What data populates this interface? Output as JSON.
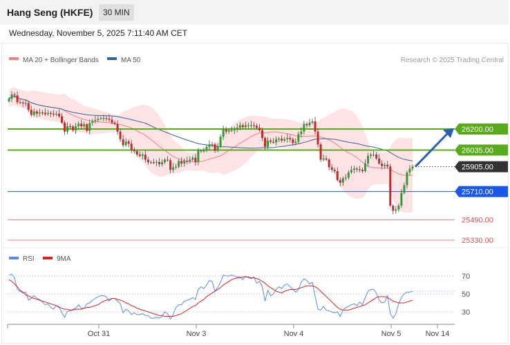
{
  "header": {
    "title": "Hang Seng (HKFE)",
    "timeframe": "30 MIN",
    "timestamp": "Wednesday, November 5, 2025 7:11:40 AM CET"
  },
  "legend": {
    "ma20": "MA 20 + Bollinger Bands",
    "ma50": "MA 50",
    "ma20_color": "#f08080",
    "ma50_color": "#3a5f9a",
    "credit": "Research © 2025 Trading Central"
  },
  "rsi_legend": {
    "rsi": "RSI",
    "ma9": "9MA",
    "rsi_color": "#5b8be0",
    "ma9_color": "#e02020"
  },
  "colors": {
    "green_level": "#5aaa1e",
    "blue_level": "#1a56e8",
    "red_level": "#e88080",
    "current_price": "#333333",
    "bollinger_fill": "#fde0e0",
    "candle_up": "#2e9e2e",
    "candle_down": "#c62828",
    "arrow": "#2c5fad"
  },
  "chart_data": {
    "type": "candlestick",
    "ylim": [
      25300,
      26600
    ],
    "levels": [
      {
        "label": "26200.00",
        "value": 26200,
        "style": "green"
      },
      {
        "label": "26035.00",
        "value": 26035,
        "style": "green"
      },
      {
        "label": "25905.00",
        "value": 25905,
        "style": "current"
      },
      {
        "label": "25710.00",
        "value": 25710,
        "style": "blue"
      },
      {
        "label": "25490.00",
        "value": 25490,
        "style": "red"
      },
      {
        "label": "25330.00",
        "value": 25330,
        "style": "red"
      }
    ],
    "x_ticks": [
      "Oct 31",
      "Nov 3",
      "Nov 4",
      "Nov 5",
      "Nov 14"
    ],
    "close": [
      26437,
      26470,
      26464,
      26410,
      26408,
      26401,
      26404,
      26350,
      26310,
      26338,
      26321,
      26330,
      26327,
      26316,
      26326,
      26320,
      26318,
      26320,
      26300,
      26250,
      26180,
      26222,
      26220,
      26190,
      26222,
      26242,
      26221,
      26237,
      26186,
      26248,
      26262,
      26270,
      26279,
      26286,
      26286,
      26282,
      26273,
      26250,
      26240,
      26180,
      26120,
      26073,
      26102,
      26085,
      26036,
      26026,
      26000,
      25990,
      26000,
      25960,
      25940,
      25940,
      25935,
      25942,
      25925,
      25940,
      25960,
      25955,
      25880,
      25900,
      25905,
      25950,
      25930,
      25950,
      25945,
      25960,
      25975,
      25940,
      26030,
      26030,
      26030,
      26060,
      26080,
      26080,
      26030,
      26060,
      26140,
      26195,
      26180,
      26190,
      26190,
      26200,
      26210,
      26230,
      26215,
      26230,
      26230,
      26230,
      26225,
      26210,
      26190,
      26130,
      26060,
      26110,
      26100,
      26095,
      26120,
      26125,
      26110,
      26120,
      26130,
      26120,
      26090,
      26100,
      26160,
      26180,
      26240,
      26230,
      26250,
      26260,
      26180,
      26080,
      25960,
      25970,
      25960,
      25900,
      25880,
      25870,
      25800,
      25780,
      25815,
      25820,
      25860,
      25880,
      25890,
      25885,
      25880,
      25870,
      25930,
      25990,
      26000,
      26000,
      25970,
      25930,
      25910,
      25920,
      25907,
      25600,
      25560,
      25570,
      25600,
      25700,
      25760,
      25860,
      25890,
      25905
    ],
    "rsi": {
      "ylim": [
        20,
        80
      ],
      "levels": [
        70,
        50,
        30
      ],
      "rsi": [
        71,
        72,
        68,
        55,
        53,
        51,
        52,
        43,
        45,
        48,
        45,
        44,
        41,
        38,
        39,
        35,
        33,
        37,
        36,
        29,
        24,
        31,
        31,
        33,
        34,
        38,
        34,
        34,
        39,
        40,
        43,
        45,
        47,
        48,
        48,
        47,
        42,
        45,
        45,
        42,
        39,
        29,
        33,
        31,
        27,
        29,
        27,
        27,
        28,
        26,
        26,
        23,
        23,
        24,
        23,
        25,
        30,
        28,
        22,
        27,
        35,
        38,
        38,
        42,
        43,
        44,
        46,
        44,
        55,
        58,
        56,
        60,
        65,
        64,
        53,
        57,
        63,
        71,
        70,
        70,
        71,
        70,
        69,
        69,
        66,
        70,
        68,
        67,
        69,
        62,
        64,
        58,
        42,
        54,
        48,
        50,
        55,
        58,
        56,
        60,
        61,
        58,
        55,
        52,
        55,
        63,
        67,
        65,
        61,
        63,
        47,
        33,
        32,
        36,
        32,
        31,
        30,
        29,
        30,
        25,
        32,
        35,
        36,
        38,
        39,
        37,
        41,
        38,
        46,
        53,
        55,
        55,
        51,
        43,
        40,
        41,
        48,
        28,
        23,
        28,
        39,
        46,
        50,
        52,
        52,
        53
      ],
      "ma9": [
        66,
        64,
        61,
        58,
        54,
        52,
        49,
        48,
        46,
        45,
        44,
        43,
        42,
        41,
        40,
        39,
        38,
        37,
        35,
        34,
        33,
        33,
        32,
        32,
        33,
        33,
        33,
        34,
        35,
        35,
        36,
        37,
        38,
        40,
        42,
        43,
        44,
        45,
        45,
        44,
        43,
        42,
        40,
        39,
        37,
        36,
        34,
        33,
        32,
        31,
        30,
        29,
        28,
        27,
        26,
        26,
        25,
        25,
        25,
        25,
        26,
        27,
        28,
        30,
        32,
        34,
        36,
        37,
        40,
        42,
        44,
        47,
        49,
        51,
        53,
        55,
        57,
        60,
        62,
        64,
        66,
        67,
        68,
        68,
        69,
        69,
        69,
        68,
        68,
        67,
        66,
        64,
        62,
        59,
        57,
        55,
        53,
        52,
        51,
        53,
        54,
        55,
        55,
        55,
        56,
        57,
        58,
        59,
        59,
        59,
        58,
        56,
        53,
        50,
        47,
        44,
        41,
        38,
        35,
        33,
        32,
        32,
        32,
        33,
        34,
        35,
        36,
        37,
        38,
        40,
        42,
        44,
        46,
        47,
        47,
        47,
        46,
        44,
        42,
        41,
        40,
        40,
        40,
        41,
        42,
        43
      ]
    }
  }
}
